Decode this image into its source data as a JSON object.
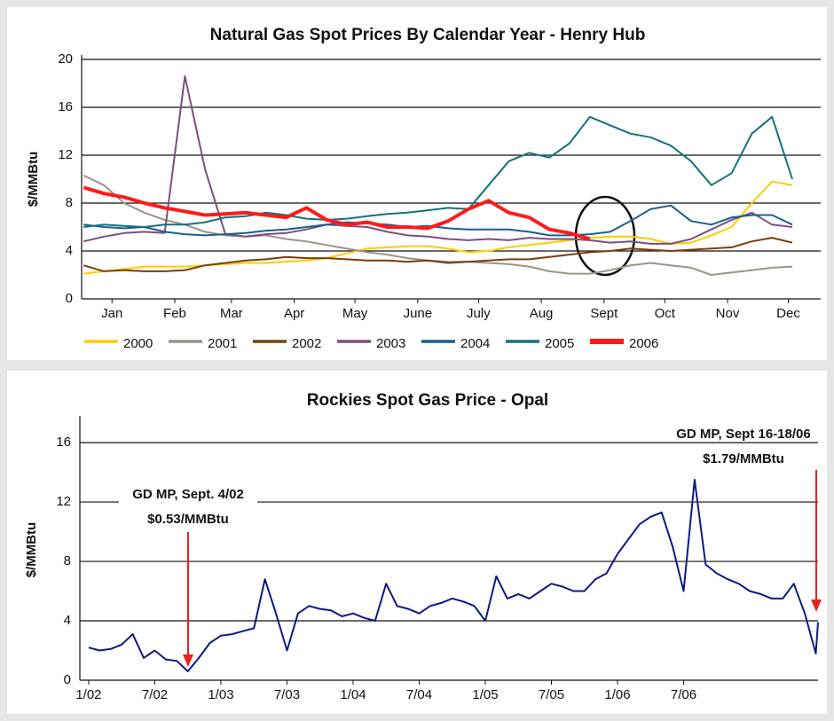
{
  "chart_data": [
    {
      "type": "line",
      "title": "Natural Gas Spot Prices By Calendar Year - Henry Hub",
      "ylabel": "$/MMBtu",
      "x": [
        1,
        11,
        21,
        31,
        41,
        51,
        61,
        71,
        81,
        91,
        101,
        111,
        121,
        131,
        141,
        151,
        161,
        171,
        181,
        191,
        201,
        211,
        221,
        231,
        241,
        251,
        261,
        271,
        281,
        291,
        301,
        311,
        321,
        331,
        341,
        351
      ],
      "xlim": [
        0,
        365
      ],
      "xticks": [
        {
          "value": 15,
          "label": "Jan"
        },
        {
          "value": 46,
          "label": "Feb"
        },
        {
          "value": 74,
          "label": "Mar"
        },
        {
          "value": 105,
          "label": "Apr"
        },
        {
          "value": 135,
          "label": "May"
        },
        {
          "value": 166,
          "label": "June"
        },
        {
          "value": 196,
          "label": "July"
        },
        {
          "value": 227,
          "label": "Aug"
        },
        {
          "value": 258,
          "label": "Sept"
        },
        {
          "value": 288,
          "label": "Oct"
        },
        {
          "value": 319,
          "label": "Nov"
        },
        {
          "value": 349,
          "label": "Dec"
        }
      ],
      "ylim": [
        0,
        20
      ],
      "yticks": [
        0,
        4,
        8,
        12,
        16,
        20
      ],
      "grid": true,
      "series": [
        {
          "name": "2000",
          "color": "#ffcc00",
          "values": [
            2.1,
            2.3,
            2.5,
            2.7,
            2.7,
            2.7,
            2.8,
            2.9,
            3.0,
            3.0,
            3.1,
            3.2,
            3.4,
            3.8,
            4.2,
            4.3,
            4.4,
            4.4,
            4.2,
            3.9,
            4.0,
            4.3,
            4.5,
            4.7,
            4.9,
            5.1,
            5.2,
            5.2,
            5.0,
            4.6,
            4.7,
            5.3,
            6.0,
            8.0,
            9.8,
            9.5
          ]
        },
        {
          "name": "2001",
          "color": "#9c9488",
          "values": [
            10.3,
            9.5,
            8.0,
            7.2,
            6.6,
            6.2,
            5.6,
            5.3,
            5.2,
            5.3,
            5.0,
            4.8,
            4.5,
            4.2,
            3.9,
            3.7,
            3.4,
            3.2,
            3.1,
            3.1,
            3.0,
            2.9,
            2.7,
            2.3,
            2.1,
            2.1,
            2.4,
            2.8,
            3.0,
            2.8,
            2.6,
            2.0,
            2.2,
            2.4,
            2.6,
            2.7
          ]
        },
        {
          "name": "2002",
          "color": "#7a3e0c",
          "values": [
            2.8,
            2.3,
            2.4,
            2.3,
            2.3,
            2.4,
            2.8,
            3.0,
            3.2,
            3.3,
            3.5,
            3.4,
            3.4,
            3.3,
            3.2,
            3.2,
            3.1,
            3.2,
            3.0,
            3.1,
            3.2,
            3.3,
            3.3,
            3.5,
            3.7,
            3.9,
            4.0,
            4.2,
            4.1,
            4.0,
            4.1,
            4.2,
            4.3,
            4.8,
            5.1,
            4.7
          ]
        },
        {
          "name": "2003",
          "color": "#7b4f7f",
          "values": [
            4.8,
            5.2,
            5.5,
            5.6,
            5.5,
            18.6,
            10.8,
            5.4,
            5.2,
            5.4,
            5.5,
            5.8,
            6.2,
            6.1,
            6.0,
            5.6,
            5.3,
            5.2,
            5.0,
            4.9,
            5.0,
            4.9,
            5.1,
            5.0,
            5.0,
            4.9,
            4.7,
            4.8,
            4.6,
            4.6,
            5.0,
            5.8,
            6.6,
            7.2,
            6.2,
            6.0
          ]
        },
        {
          "name": "2004",
          "color": "#1a5e91",
          "values": [
            6.2,
            6.0,
            5.9,
            6.0,
            5.6,
            5.4,
            5.3,
            5.4,
            5.5,
            5.7,
            5.8,
            6.0,
            6.2,
            6.4,
            6.3,
            6.2,
            6.0,
            6.1,
            5.9,
            5.8,
            5.8,
            5.8,
            5.6,
            5.3,
            5.3,
            5.4,
            5.6,
            6.5,
            7.5,
            7.8,
            6.5,
            6.2,
            6.8,
            7.0,
            7.0,
            6.2
          ]
        },
        {
          "name": "2005",
          "color": "#137379",
          "values": [
            6.0,
            6.2,
            6.1,
            6.0,
            6.2,
            6.2,
            6.4,
            6.8,
            6.9,
            7.2,
            7.0,
            6.7,
            6.6,
            6.7,
            6.9,
            7.1,
            7.2,
            7.4,
            7.6,
            7.5,
            9.5,
            11.5,
            12.2,
            11.8,
            13.0,
            15.2,
            14.5,
            13.8,
            13.5,
            12.8,
            11.5,
            9.5,
            10.5,
            13.8,
            15.2,
            10.0
          ]
        },
        {
          "name": "2006",
          "color": "#ff1a1a",
          "values": [
            9.3,
            8.8,
            8.5,
            8.0,
            7.6,
            7.3,
            7.0,
            7.1,
            7.2,
            7.0,
            6.8,
            7.6,
            6.6,
            6.2,
            6.4,
            6.0,
            6.0,
            5.9,
            6.5,
            7.5,
            8.2,
            7.2,
            6.8,
            5.8,
            5.5,
            5.0,
            null,
            null,
            null,
            null,
            null,
            null,
            null,
            null,
            null,
            null
          ]
        }
      ]
    },
    {
      "type": "line",
      "title": "Rockies Spot Gas Price - Opal",
      "ylabel": "$/MMBtu",
      "x": [
        0,
        1,
        2,
        3,
        4,
        5,
        6,
        7,
        8,
        9,
        10,
        11,
        12,
        13,
        14,
        15,
        16,
        17,
        18,
        19,
        20,
        21,
        22,
        23,
        24,
        25,
        26,
        27,
        28,
        29,
        30,
        31,
        32,
        33,
        34,
        35,
        36,
        37,
        38,
        39,
        40,
        41,
        42,
        43,
        44,
        45,
        46,
        47,
        48,
        49,
        50,
        51,
        52,
        53,
        54,
        55,
        56,
        57,
        58,
        59,
        60,
        61,
        62,
        63,
        64,
        65,
        66,
        66.2
      ],
      "xlim": [
        -0.8,
        66.2
      ],
      "xticks": [
        {
          "value": 0,
          "label": "1/02"
        },
        {
          "value": 6,
          "label": "7/02"
        },
        {
          "value": 12,
          "label": "1/03"
        },
        {
          "value": 18,
          "label": "7/03"
        },
        {
          "value": 24,
          "label": "1/04"
        },
        {
          "value": 30,
          "label": "7/04"
        },
        {
          "value": 36,
          "label": "1/05"
        },
        {
          "value": 42,
          "label": "7/05"
        },
        {
          "value": 48,
          "label": "1/06"
        },
        {
          "value": 54,
          "label": "7/06"
        }
      ],
      "ylim": [
        0,
        17.5
      ],
      "yticks": [
        0,
        4,
        8,
        12,
        16
      ],
      "grid": true,
      "series": [
        {
          "name": "Opal",
          "color": "#0d1a80",
          "values": [
            2.2,
            2.0,
            2.1,
            2.4,
            3.1,
            1.5,
            2.0,
            1.4,
            1.3,
            0.6,
            1.5,
            2.5,
            3.0,
            3.1,
            3.3,
            3.5,
            6.8,
            4.5,
            2.0,
            4.5,
            5.0,
            4.8,
            4.7,
            4.3,
            4.5,
            4.2,
            4.0,
            6.5,
            5.0,
            4.8,
            4.5,
            5.0,
            5.2,
            5.5,
            5.3,
            5.0,
            4.0,
            7.0,
            5.5,
            5.8,
            5.5,
            6.0,
            6.5,
            6.3,
            6.0,
            6.0,
            6.8,
            7.2,
            8.5,
            9.5,
            10.5,
            11.0,
            11.3,
            9.0,
            6.0,
            13.5,
            7.8,
            7.2,
            6.8,
            6.5,
            6.0,
            5.8,
            5.5,
            5.5,
            6.5,
            4.5,
            1.8,
            3.9
          ]
        }
      ],
      "annotations": [
        {
          "lines": [
            "GD MP, Sept. 4/02",
            "$0.53/MMBtu"
          ]
        },
        {
          "lines": [
            "GD MP, Sept 16-18/06",
            "$1.79/MMBtu"
          ]
        }
      ]
    }
  ]
}
